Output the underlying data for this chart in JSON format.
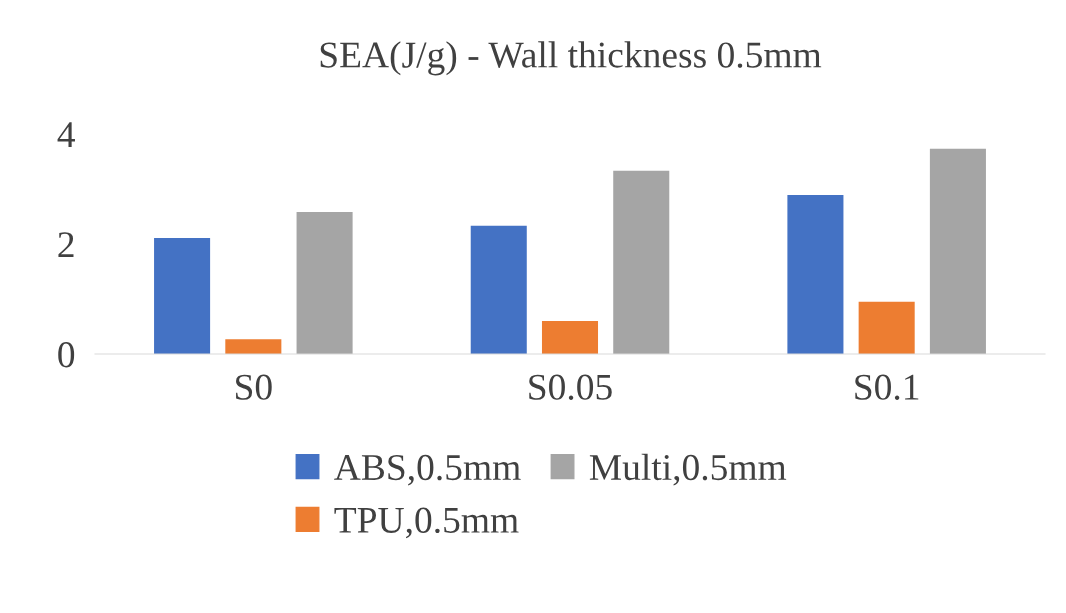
{
  "chart_data": {
    "type": "bar",
    "title": "SEA(J/g) - Wall thickness 0.5mm",
    "categories": [
      "S0",
      "S0.05",
      "S0.1"
    ],
    "series": [
      {
        "name": "ABS,0.5mm",
        "color": "#4472c4",
        "values": [
          2.11,
          2.33,
          2.89
        ]
      },
      {
        "name": "TPU,0.5mm",
        "color": "#ed7d31",
        "values": [
          0.27,
          0.6,
          0.95
        ]
      },
      {
        "name": "Multi,0.5mm",
        "color": "#a5a5a5",
        "values": [
          2.58,
          3.33,
          3.73
        ]
      }
    ],
    "ylim": [
      0,
      4
    ],
    "yticks": [
      0,
      2,
      4
    ],
    "grid": false,
    "legend": "bottom"
  }
}
